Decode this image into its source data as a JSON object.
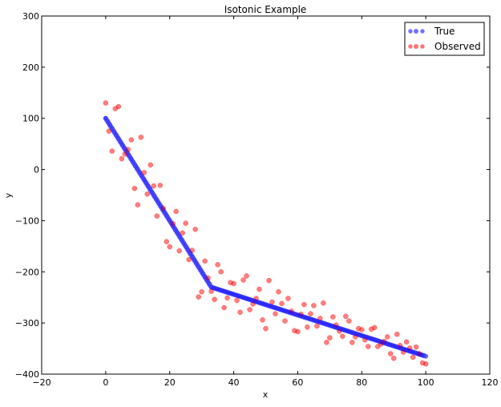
{
  "chart_data": {
    "type": "scatter",
    "title": "Isotonic Example",
    "xlabel": "x",
    "ylabel": "y",
    "xlim": [
      -20,
      120
    ],
    "ylim": [
      -400,
      300
    ],
    "xticks": [
      -20,
      0,
      20,
      40,
      60,
      80,
      100,
      120
    ],
    "yticks": [
      -400,
      -300,
      -200,
      -100,
      0,
      100,
      200,
      300
    ],
    "grid": false,
    "legend_position": "top-right",
    "series": [
      {
        "name": "True",
        "color": "#0000ff",
        "x": [
          0,
          33,
          100
        ],
        "y": [
          100,
          -230,
          -365
        ]
      },
      {
        "name": "Observed",
        "color": "#ff0000",
        "x": [
          0,
          1,
          2,
          3,
          4,
          5,
          6,
          7,
          8,
          9,
          10,
          11,
          12,
          13,
          14,
          15,
          16,
          17,
          18,
          19,
          20,
          21,
          22,
          23,
          24,
          25,
          26,
          27,
          28,
          29,
          30,
          31,
          32,
          33,
          34,
          35,
          36,
          37,
          38,
          39,
          40,
          41,
          42,
          43,
          44,
          45,
          46,
          47,
          48,
          49,
          50,
          51,
          52,
          53,
          54,
          55,
          56,
          57,
          58,
          59,
          60,
          61,
          62,
          63,
          64,
          65,
          66,
          67,
          68,
          69,
          70,
          71,
          72,
          73,
          74,
          75,
          76,
          77,
          78,
          79,
          80,
          81,
          82,
          83,
          84,
          85,
          86,
          87,
          88,
          89,
          90,
          91,
          92,
          93,
          94,
          95,
          96,
          97,
          98,
          99,
          100
        ],
        "y": [
          130,
          75,
          36,
          119,
          123,
          21,
          30,
          39,
          58,
          -37,
          -69,
          63,
          -6,
          -48,
          9,
          -32,
          -91,
          -31,
          -76,
          -141,
          -151,
          -106,
          -82,
          -159,
          -124,
          -105,
          -176,
          -158,
          -117,
          -249,
          -239,
          -179,
          -212,
          -238,
          -254,
          -186,
          -200,
          -270,
          -251,
          -221,
          -223,
          -256,
          -279,
          -216,
          -208,
          -274,
          -263,
          -252,
          -234,
          -294,
          -311,
          -217,
          -259,
          -282,
          -239,
          -262,
          -296,
          -252,
          -277,
          -315,
          -317,
          -283,
          -264,
          -308,
          -282,
          -266,
          -306,
          -291,
          -261,
          -338,
          -329,
          -288,
          -304,
          -316,
          -326,
          -287,
          -296,
          -338,
          -327,
          -311,
          -313,
          -333,
          -346,
          -312,
          -309,
          -346,
          -341,
          -336,
          -327,
          -360,
          -369,
          -322,
          -344,
          -357,
          -337,
          -349,
          -367,
          -347,
          -360,
          -378,
          -380
        ]
      }
    ]
  }
}
